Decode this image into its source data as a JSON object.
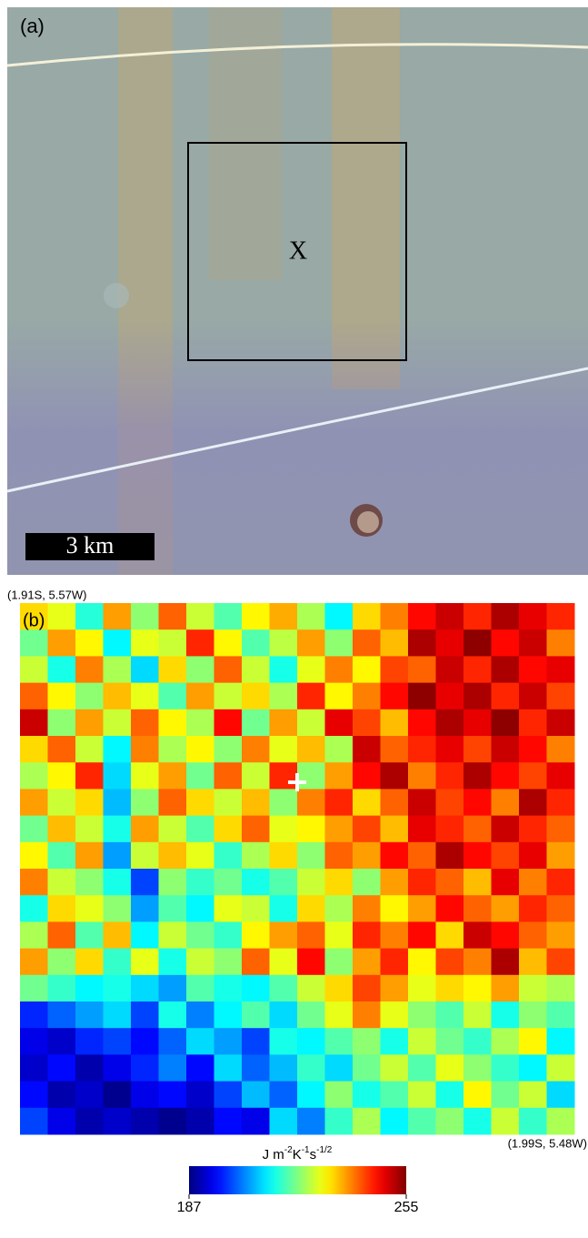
{
  "panel_a": {
    "label": "(a)",
    "marker": "X",
    "scale_bar": "3 km"
  },
  "chart_data": {
    "type": "heatmap",
    "panel_label": "(b)",
    "corner_top_left": "(1.91S, 5.57W)",
    "corner_bottom_right": "(1.99S, 5.48W)",
    "colormap": "jet",
    "clim": [
      187,
      255
    ],
    "colorbar_ticks": [
      187,
      255
    ],
    "colorbar_label": [
      {
        "text": "J m"
      },
      {
        "text": "-2",
        "sup": true
      },
      {
        "text": "K"
      },
      {
        "text": "-1",
        "sup": true
      },
      {
        "text": "s"
      },
      {
        "text": "-1/2",
        "sup": true
      }
    ],
    "values": [
      [
        232,
        228,
        215,
        236,
        222,
        240,
        226,
        218,
        230,
        235,
        224,
        212,
        232,
        238,
        246,
        250,
        244,
        252,
        248,
        244
      ],
      [
        220,
        236,
        230,
        212,
        228,
        226,
        244,
        230,
        218,
        225,
        236,
        222,
        240,
        234,
        252,
        248,
        254,
        246,
        250,
        238
      ],
      [
        226,
        214,
        238,
        224,
        210,
        232,
        222,
        240,
        226,
        214,
        228,
        238,
        230,
        242,
        240,
        250,
        244,
        252,
        246,
        248
      ],
      [
        240,
        230,
        222,
        234,
        228,
        218,
        236,
        226,
        232,
        224,
        244,
        230,
        238,
        246,
        254,
        248,
        252,
        244,
        250,
        242
      ],
      [
        250,
        222,
        236,
        226,
        240,
        230,
        224,
        246,
        220,
        236,
        226,
        248,
        242,
        234,
        246,
        252,
        248,
        254,
        244,
        250
      ],
      [
        232,
        240,
        226,
        212,
        238,
        224,
        230,
        222,
        238,
        228,
        234,
        224,
        250,
        240,
        244,
        248,
        242,
        250,
        246,
        238
      ],
      [
        224,
        230,
        244,
        210,
        228,
        236,
        220,
        240,
        226,
        244,
        222,
        236,
        246,
        252,
        238,
        244,
        252,
        246,
        242,
        248
      ],
      [
        236,
        226,
        232,
        208,
        222,
        240,
        232,
        226,
        234,
        222,
        238,
        244,
        232,
        240,
        250,
        242,
        246,
        238,
        252,
        244
      ],
      [
        220,
        234,
        226,
        214,
        236,
        226,
        218,
        232,
        240,
        228,
        230,
        236,
        242,
        234,
        248,
        244,
        240,
        250,
        244,
        240
      ],
      [
        230,
        218,
        236,
        206,
        226,
        234,
        228,
        216,
        224,
        232,
        222,
        240,
        236,
        246,
        240,
        252,
        246,
        242,
        248,
        236
      ],
      [
        238,
        226,
        222,
        214,
        200,
        222,
        216,
        220,
        214,
        218,
        226,
        232,
        222,
        236,
        244,
        240,
        234,
        248,
        238,
        244
      ],
      [
        214,
        232,
        228,
        222,
        206,
        218,
        212,
        228,
        226,
        214,
        232,
        224,
        238,
        230,
        236,
        246,
        240,
        236,
        244,
        240
      ],
      [
        224,
        240,
        218,
        234,
        212,
        226,
        220,
        216,
        230,
        236,
        240,
        228,
        244,
        238,
        246,
        232,
        250,
        246,
        240,
        236
      ],
      [
        236,
        222,
        232,
        216,
        228,
        214,
        226,
        222,
        240,
        228,
        246,
        222,
        236,
        244,
        230,
        242,
        238,
        252,
        234,
        242
      ],
      [
        220,
        216,
        212,
        214,
        210,
        206,
        218,
        214,
        212,
        218,
        226,
        232,
        242,
        236,
        228,
        232,
        230,
        236,
        226,
        224
      ],
      [
        198,
        202,
        206,
        210,
        200,
        214,
        204,
        212,
        218,
        210,
        220,
        228,
        238,
        228,
        222,
        218,
        226,
        214,
        222,
        218
      ],
      [
        194,
        192,
        198,
        200,
        196,
        202,
        210,
        206,
        200,
        214,
        212,
        218,
        222,
        214,
        226,
        220,
        216,
        224,
        230,
        212
      ],
      [
        192,
        196,
        190,
        194,
        198,
        204,
        196,
        210,
        202,
        208,
        216,
        210,
        220,
        226,
        218,
        228,
        222,
        216,
        212,
        226
      ],
      [
        196,
        190,
        192,
        188,
        194,
        196,
        192,
        200,
        208,
        202,
        212,
        222,
        214,
        218,
        226,
        214,
        230,
        220,
        226,
        210
      ],
      [
        200,
        194,
        190,
        192,
        190,
        188,
        190,
        196,
        194,
        210,
        204,
        216,
        224,
        212,
        218,
        222,
        214,
        226,
        216,
        224
      ]
    ]
  }
}
